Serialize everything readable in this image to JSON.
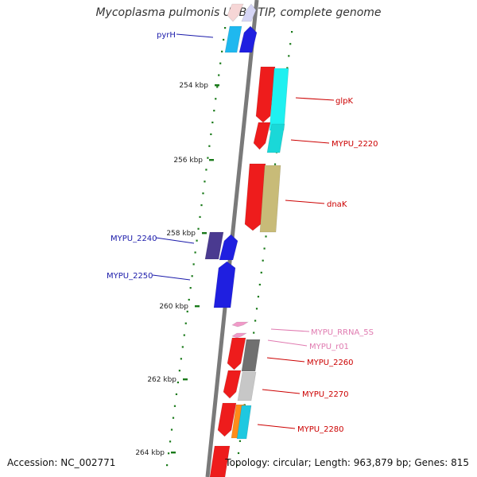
{
  "title": "Mycoplasma pulmonis UAB CTIP, complete genome",
  "footer": {
    "accession": "Accession: NC_002771",
    "summary": "Topology: circular; Length: 963,879 bp; Genes: 815"
  },
  "colors": {
    "backbone": "#7a7a7a",
    "tick": "#1a7a1a",
    "forward_label": "#cc0000",
    "reverse_label": "#1a1aaa",
    "rna_label": "#e07ab0"
  },
  "ticks": [
    {
      "label": "254 kbp"
    },
    {
      "label": "256 kbp"
    },
    {
      "label": "258 kbp"
    },
    {
      "label": "260 kbp"
    },
    {
      "label": "262 kbp"
    },
    {
      "label": "264 kbp"
    }
  ],
  "gene_labels": [
    {
      "name": "pyrH",
      "strand": "reverse"
    },
    {
      "name": "glpK",
      "strand": "forward"
    },
    {
      "name": "MYPU_2220",
      "strand": "forward"
    },
    {
      "name": "dnaK",
      "strand": "forward"
    },
    {
      "name": "MYPU_2240",
      "strand": "reverse"
    },
    {
      "name": "MYPU_2250",
      "strand": "reverse"
    },
    {
      "name": "MYPU_RRNA_5S",
      "strand": "rna"
    },
    {
      "name": "MYPU_r01",
      "strand": "rna"
    },
    {
      "name": "MYPU_2260",
      "strand": "forward"
    },
    {
      "name": "MYPU_2270",
      "strand": "forward"
    },
    {
      "name": "MYPU_2280",
      "strand": "forward"
    }
  ]
}
